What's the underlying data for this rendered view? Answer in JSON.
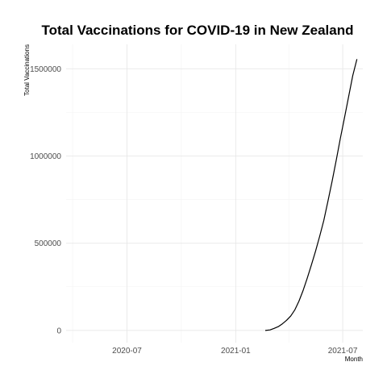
{
  "chart_data": {
    "type": "line",
    "title": "Total Vaccinations for COVID-19 in New Zealand",
    "xlabel": "Month",
    "ylabel": "Total Vaccinations",
    "x_type": "date",
    "xlim": [
      "2020-03-20",
      "2021-08-04"
    ],
    "ylim": [
      -70000,
      1640000
    ],
    "x_ticks": [
      {
        "value": "2020-07-01",
        "label": "2020-07"
      },
      {
        "value": "2021-01-01",
        "label": "2021-01"
      },
      {
        "value": "2021-07-01",
        "label": "2021-07"
      }
    ],
    "y_ticks": [
      {
        "value": 0,
        "label": "0"
      },
      {
        "value": 500000,
        "label": "500000"
      },
      {
        "value": 1000000,
        "label": "1000000"
      },
      {
        "value": 1500000,
        "label": "1500000"
      }
    ],
    "grid": true,
    "legend": "none",
    "series": [
      {
        "color": "#000000",
        "x": [
          "2021-02-20",
          "2021-02-28",
          "2021-03-07",
          "2021-03-14",
          "2021-03-21",
          "2021-03-28",
          "2021-04-04",
          "2021-04-11",
          "2021-04-18",
          "2021-04-25",
          "2021-05-02",
          "2021-05-09",
          "2021-05-16",
          "2021-05-23",
          "2021-05-30",
          "2021-06-06",
          "2021-06-13",
          "2021-06-20",
          "2021-06-27",
          "2021-07-04",
          "2021-07-11",
          "2021-07-18",
          "2021-07-25"
        ],
        "y": [
          0,
          3000,
          12000,
          22000,
          38000,
          58000,
          83000,
          118000,
          168000,
          230000,
          300000,
          375000,
          455000,
          540000,
          630000,
          740000,
          855000,
          975000,
          1100000,
          1220000,
          1340000,
          1460000,
          1555000
        ]
      }
    ]
  }
}
